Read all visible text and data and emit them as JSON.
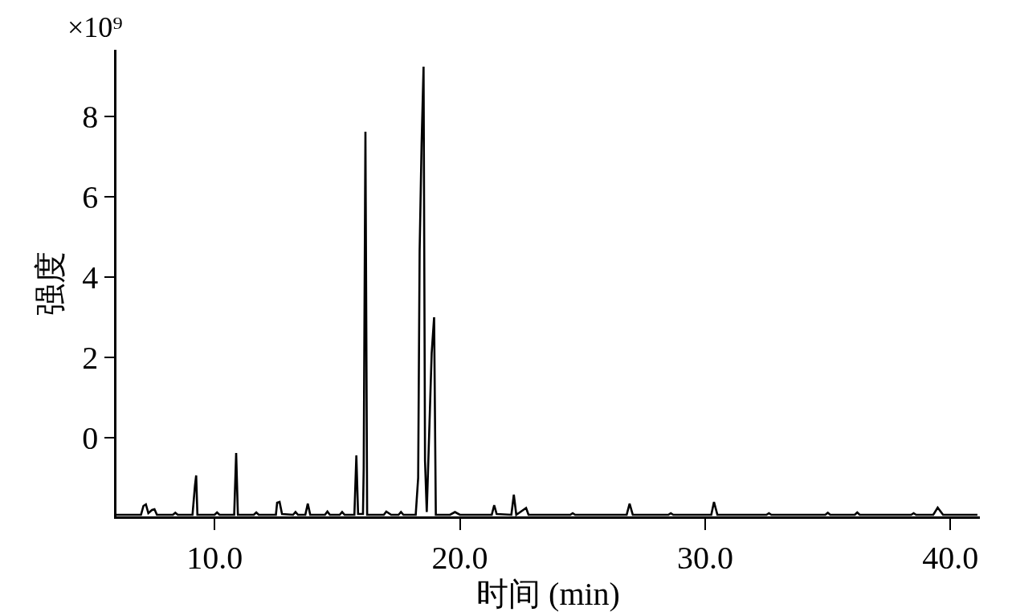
{
  "chart_data": {
    "type": "line",
    "xlabel": "时间 (min)",
    "ylabel": "强度",
    "annotations": [
      "×10⁹"
    ],
    "x": [
      6.0,
      7.0,
      7.1,
      7.2,
      7.3,
      7.45,
      7.55,
      7.65,
      8.3,
      8.4,
      8.5,
      9.1,
      9.2,
      9.25,
      9.3,
      10.0,
      10.1,
      10.2,
      10.8,
      10.88,
      10.95,
      11.6,
      11.7,
      11.8,
      12.5,
      12.55,
      12.65,
      12.75,
      13.2,
      13.3,
      13.4,
      13.7,
      13.8,
      13.9,
      14.5,
      14.6,
      14.7,
      15.1,
      15.2,
      15.3,
      15.7,
      15.78,
      15.85,
      16.05,
      16.08,
      16.15,
      16.22,
      16.9,
      17.0,
      17.2,
      17.5,
      17.6,
      17.7,
      18.2,
      18.3,
      18.36,
      18.44,
      18.52,
      18.58,
      18.65,
      18.85,
      18.95,
      19.02,
      19.6,
      19.8,
      20.0,
      20.5,
      21.3,
      21.4,
      21.5,
      22.1,
      22.2,
      22.3,
      22.7,
      22.8,
      22.9,
      24.5,
      24.6,
      24.7,
      26.8,
      26.92,
      27.05,
      28.5,
      28.6,
      28.7,
      30.25,
      30.36,
      30.5,
      32.5,
      32.6,
      32.7,
      34.9,
      35.0,
      35.1,
      36.1,
      36.2,
      36.3,
      38.4,
      38.5,
      38.6,
      39.3,
      39.48,
      39.7,
      41.1
    ],
    "values": [
      -1.92,
      -1.92,
      -1.7,
      -1.66,
      -1.88,
      -1.8,
      -1.78,
      -1.92,
      -1.92,
      -1.87,
      -1.92,
      -1.92,
      -1.2,
      -0.94,
      -1.92,
      -1.92,
      -1.86,
      -1.92,
      -1.92,
      -0.38,
      -1.92,
      -1.92,
      -1.86,
      -1.92,
      -1.92,
      -1.62,
      -1.6,
      -1.9,
      -1.92,
      -1.85,
      -1.92,
      -1.92,
      -1.64,
      -1.92,
      -1.92,
      -1.84,
      -1.92,
      -1.92,
      -1.85,
      -1.92,
      -1.92,
      -0.44,
      -1.9,
      -1.9,
      -0.74,
      7.62,
      -1.92,
      -1.92,
      -1.84,
      -1.92,
      -1.92,
      -1.85,
      -1.92,
      -1.92,
      -1.0,
      4.66,
      7.32,
      9.24,
      -0.58,
      -1.85,
      2.1,
      3.0,
      -1.92,
      -1.92,
      -1.85,
      -1.92,
      -1.92,
      -1.92,
      -1.68,
      -1.9,
      -1.92,
      -1.42,
      -1.92,
      -1.75,
      -1.92,
      -1.92,
      -1.92,
      -1.88,
      -1.92,
      -1.92,
      -1.64,
      -1.92,
      -1.92,
      -1.88,
      -1.92,
      -1.92,
      -1.6,
      -1.92,
      -1.92,
      -1.88,
      -1.92,
      -1.92,
      -1.87,
      -1.92,
      -1.92,
      -1.86,
      -1.92,
      -1.92,
      -1.88,
      -1.92,
      -1.92,
      -1.74,
      -1.92,
      -1.92
    ],
    "color": "#000000",
    "xlim": [
      6.0,
      41.2
    ],
    "ylim": [
      -1.96,
      9.66
    ],
    "xticks": [
      {
        "value": 10,
        "label": "10.0"
      },
      {
        "value": 20,
        "label": "20.0"
      },
      {
        "value": 30,
        "label": "30.0"
      },
      {
        "value": 40,
        "label": "40.0"
      }
    ],
    "yticks": [
      0,
      2,
      4,
      6,
      8
    ],
    "grid": false,
    "marker": "none",
    "line_style": "solid"
  }
}
